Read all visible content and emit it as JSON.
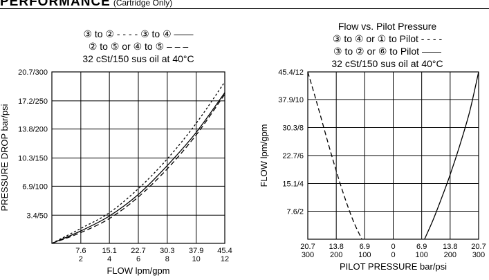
{
  "header": {
    "title": "PERFORMANCE",
    "subtitle": "(Cartridge Only)"
  },
  "left_chart": {
    "legend_lines": [
      "③ to ② - - - -    ③ to ④ ——",
      "② to ⑤ or ④ to ⑤ – – –",
      "32 cSt/150 sus oil at 40°C"
    ]
  },
  "right_chart": {
    "legend_lines": [
      "Flow vs. Pilot Pressure",
      "③ to ④ or ① to Pilot - - - -",
      "③ to ② or ⑥ to Pilot ——",
      "32 cSt/150 sus oil at 40°C"
    ]
  },
  "chart_data": [
    {
      "type": "line",
      "title": "",
      "xlabel": "FLOW lpm/gpm",
      "ylabel": "PRESSURE DROP bar/psi",
      "xlim": [
        0,
        45.4
      ],
      "ylim": [
        0,
        20.7
      ],
      "grid": true,
      "x_ticks": [
        {
          "value": 7.6,
          "line1": "7.6",
          "line2": "2"
        },
        {
          "value": 15.1,
          "line1": "15.1",
          "line2": "4"
        },
        {
          "value": 22.7,
          "line1": "22.7",
          "line2": "6"
        },
        {
          "value": 30.3,
          "line1": "30.3",
          "line2": "8"
        },
        {
          "value": 37.9,
          "line1": "37.9",
          "line2": "10"
        },
        {
          "value": 45.4,
          "line1": "45.4",
          "line2": "12"
        }
      ],
      "y_ticks": [
        {
          "value": 3.4,
          "label": "3.4/50"
        },
        {
          "value": 6.9,
          "label": "6.9/100"
        },
        {
          "value": 10.3,
          "label": "10.3/150"
        },
        {
          "value": 13.8,
          "label": "13.8/200"
        },
        {
          "value": 17.2,
          "label": "17.2/250"
        },
        {
          "value": 20.7,
          "label": "20.7/300"
        }
      ],
      "series": [
        {
          "name": "③ to ②",
          "style": "dotted",
          "x": [
            0,
            7.6,
            15.1,
            22.7,
            30.3,
            37.9,
            45.4
          ],
          "y": [
            0,
            1.8,
            3.7,
            6.6,
            10.2,
            14.5,
            19.5
          ]
        },
        {
          "name": "③ to ④",
          "style": "solid",
          "x": [
            0,
            7.6,
            15.1,
            22.7,
            30.3,
            37.9,
            45.4
          ],
          "y": [
            0,
            1.5,
            3.3,
            5.9,
            9.4,
            13.4,
            18.2
          ]
        },
        {
          "name": "② to ⑤ or ④ to ⑤",
          "style": "dashed",
          "x": [
            0,
            7.6,
            15.1,
            22.7,
            30.3,
            37.9,
            45.4
          ],
          "y": [
            0,
            1.3,
            3.0,
            5.6,
            9.0,
            13.1,
            18.0
          ]
        }
      ]
    },
    {
      "type": "line",
      "title": "Flow vs. Pilot Pressure",
      "xlabel": "PILOT PRESSURE bar/psi",
      "ylabel": "FLOW lpm/gpm",
      "xlim": [
        -20.7,
        20.7
      ],
      "ylim": [
        0,
        45.4
      ],
      "grid": true,
      "x_ticks": [
        {
          "value": -20.7,
          "line1": "20.7",
          "line2": "300"
        },
        {
          "value": -13.8,
          "line1": "13.8",
          "line2": "200"
        },
        {
          "value": -6.9,
          "line1": "6.9",
          "line2": "100"
        },
        {
          "value": 0,
          "line1": "0",
          "line2": "0"
        },
        {
          "value": 6.9,
          "line1": "6.9",
          "line2": "100"
        },
        {
          "value": 13.8,
          "line1": "13.8",
          "line2": "200"
        },
        {
          "value": 20.7,
          "line1": "20.7",
          "line2": "300"
        }
      ],
      "y_ticks": [
        {
          "value": 7.6,
          "label": "7.6/2"
        },
        {
          "value": 15.1,
          "label": "15.1/4"
        },
        {
          "value": 22.7,
          "label": "22.7/6"
        },
        {
          "value": 30.3,
          "label": "30.3/8"
        },
        {
          "value": 37.9,
          "label": "37.9/10"
        },
        {
          "value": 45.4,
          "label": "45.4/12"
        }
      ],
      "series": [
        {
          "name": "③ to ④ or ① to Pilot",
          "style": "dashed",
          "x": [
            -20.7,
            -18.5,
            -16.0,
            -13.8,
            -11.5,
            -9.5,
            -7.6
          ],
          "y": [
            45.4,
            37.0,
            27.0,
            18.5,
            10.5,
            4.5,
            0
          ]
        },
        {
          "name": "③ to ② or ⑥ to Pilot",
          "style": "solid",
          "x": [
            7.6,
            9.5,
            11.5,
            13.8,
            16.0,
            18.5,
            20.7
          ],
          "y": [
            0,
            4.8,
            10.5,
            17.5,
            25.0,
            34.5,
            45.4
          ]
        }
      ]
    }
  ]
}
